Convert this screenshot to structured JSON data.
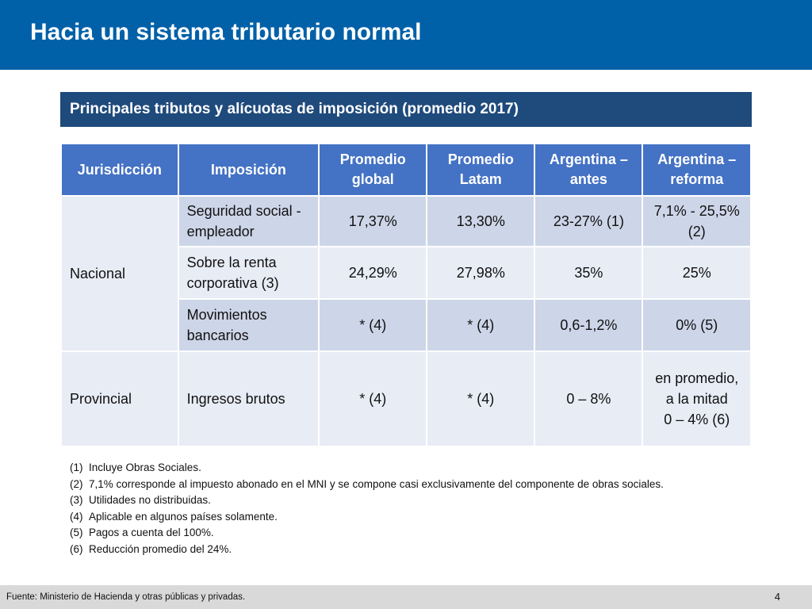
{
  "header": {
    "title": "Hacia un sistema tributario normal"
  },
  "banner": {
    "subtitle": "Principales tributos y alícuotas de imposición (promedio 2017)"
  },
  "table": {
    "headers": [
      "Jurisdicción",
      "Imposición",
      "Promedio global",
      "Promedio Latam",
      "Argentina – antes",
      "Argentina – reforma"
    ],
    "jurisdictions": {
      "nacional": "Nacional",
      "provincial": "Provincial"
    },
    "rows": [
      {
        "tax": "Seguridad social - empleador",
        "global": "17,37%",
        "latam": "13,30%",
        "antes": "23-27% (1)",
        "reforma": "7,1% - 25,5% (2)"
      },
      {
        "tax": "Sobre la renta corporativa (3)",
        "global": "24,29%",
        "latam": "27,98%",
        "antes": "35%",
        "reforma": "25%"
      },
      {
        "tax": "Movimientos bancarios",
        "global": "* (4)",
        "latam": "* (4)",
        "antes": "0,6-1,2%",
        "reforma": "0% (5)"
      },
      {
        "tax": "Ingresos brutos",
        "global": "* (4)",
        "latam": "* (4)",
        "antes": "0 – 8%",
        "reforma": "en promedio, a la mitad",
        "reforma2": "0 – 4% (6)"
      }
    ]
  },
  "notes": [
    {
      "num": "(1)",
      "text": "Incluye Obras Sociales."
    },
    {
      "num": "(2)",
      "text": "7,1% corresponde al impuesto abonado en el MNI y se compone casi exclusivamente del componente de obras sociales."
    },
    {
      "num": "(3)",
      "text": "Utilidades no distribuidas."
    },
    {
      "num": "(4)",
      "text": "Aplicable en algunos países solamente."
    },
    {
      "num": "(5)",
      "text": "Pagos a cuenta del 100%."
    },
    {
      "num": "(6)",
      "text": "Reducción promedio del 24%."
    }
  ],
  "footer": {
    "source": "Fuente: Ministerio de Hacienda  y otras públicas y privadas.",
    "page": "4"
  }
}
